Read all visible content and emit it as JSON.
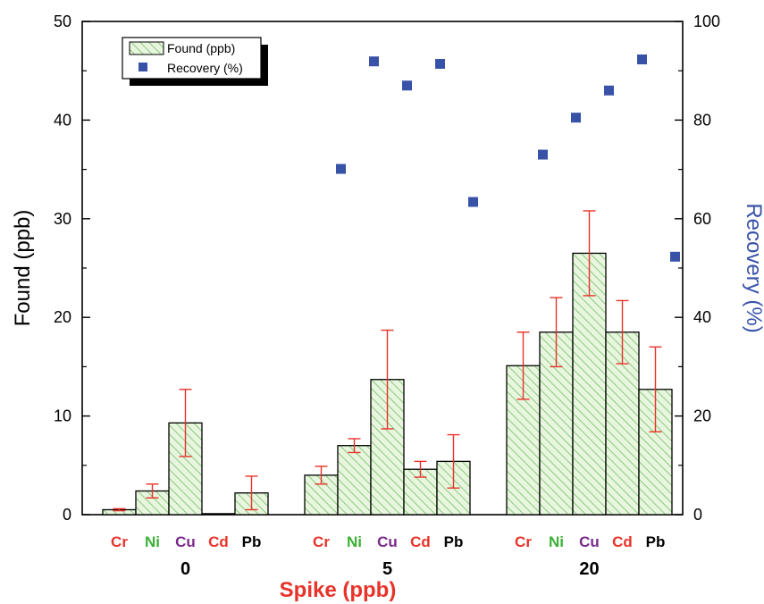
{
  "chart_data": {
    "type": "bar",
    "title": "",
    "xlabel": "Spike (ppb)",
    "ylabel_left": "Found (ppb)",
    "ylabel_right": "Recovery (%)",
    "ylim_left": [
      0,
      50
    ],
    "ylim_right": [
      0,
      100
    ],
    "yticks_left": [
      "0",
      "10",
      "20",
      "30",
      "40",
      "50"
    ],
    "yticks_right": [
      "0",
      "20",
      "40",
      "60",
      "80",
      "100"
    ],
    "groups": [
      "0",
      "5",
      "20"
    ],
    "elements": [
      "Cr",
      "Ni",
      "Cu",
      "Cd",
      "Pb"
    ],
    "element_colors": {
      "Cr": "#e8332a",
      "Ni": "#3cb035",
      "Cu": "#7a2a8c",
      "Cd": "#e8332a",
      "Pb": "#000000"
    },
    "series": [
      {
        "name": "Found (ppb)",
        "axis": "left",
        "style": "green-hatched-bar",
        "values": [
          [
            0.5,
            2.4,
            9.3,
            0.1,
            2.2
          ],
          [
            4.0,
            7.0,
            13.7,
            4.6,
            5.4
          ],
          [
            15.1,
            18.5,
            26.5,
            18.5,
            12.7
          ]
        ],
        "errors": [
          [
            0.1,
            0.7,
            3.4,
            0.05,
            1.7
          ],
          [
            0.9,
            0.7,
            5.0,
            0.8,
            2.7
          ],
          [
            3.4,
            3.5,
            4.3,
            3.2,
            4.3
          ]
        ]
      },
      {
        "name": "Recovery (%)",
        "axis": "right",
        "style": "blue-square-marker",
        "values": [
          [
            null,
            null,
            null,
            null,
            null
          ],
          [
            70.1,
            91.9,
            87.0,
            91.4,
            63.4
          ],
          [
            73.0,
            80.5,
            86.0,
            92.3,
            52.3
          ]
        ]
      }
    ],
    "legend_position": "top-left",
    "colors": {
      "bar_fill": "#e8f5df",
      "bar_hatch": "#74c064",
      "error_bar": "#e8332a",
      "marker": "#3852a8",
      "xlabel": "#e8332a",
      "ylabel_right": "#3852a8"
    }
  }
}
